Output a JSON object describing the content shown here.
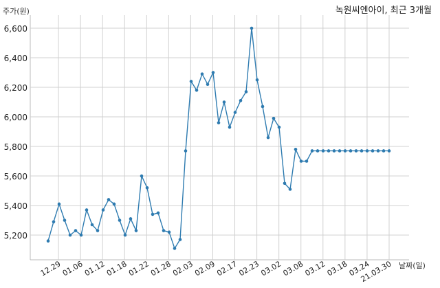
{
  "chart_data": {
    "type": "line",
    "title": "녹원씨엔아이, 최근 3개월",
    "ylabel": "주가(원)",
    "xlabel": "날짜(일)",
    "ylim": [
      5080,
      6700
    ],
    "yticks": [
      5200,
      5400,
      5600,
      5800,
      6000,
      6200,
      6400,
      6600
    ],
    "ytick_labels": [
      "5,200",
      "5,400",
      "5,600",
      "5,800",
      "6,000",
      "6,200",
      "6,400",
      "6,600"
    ],
    "xtick_labels": [
      "12.29",
      "01.06",
      "01.12",
      "01.18",
      "01.22",
      "01.28",
      "02.03",
      "02.09",
      "02.17",
      "02.23",
      "03.02",
      "03.08",
      "03.12",
      "03.18",
      "03.24",
      "21.03.30"
    ],
    "grid": true,
    "line_color": "#2e7bb0",
    "series": [
      {
        "values": [
          5160,
          5290,
          5410,
          5300,
          5200,
          5230,
          5200,
          5370,
          5270,
          5230,
          5370,
          5440,
          5410,
          5300,
          5200,
          5310,
          5230,
          5600,
          5520,
          5340,
          5350,
          5230,
          5220,
          5110,
          5170,
          5770,
          6240,
          6180,
          6290,
          6220,
          6300,
          5960,
          6100,
          5930,
          6030,
          6110,
          6170,
          6600,
          6250,
          6070,
          5860,
          5990,
          5930,
          5550,
          5510,
          5780,
          5700,
          5700,
          5770,
          5770,
          5770,
          5770,
          5770,
          5770,
          5770,
          5770,
          5770,
          5770,
          5770,
          5770,
          5770,
          5770,
          5770
        ]
      }
    ]
  }
}
